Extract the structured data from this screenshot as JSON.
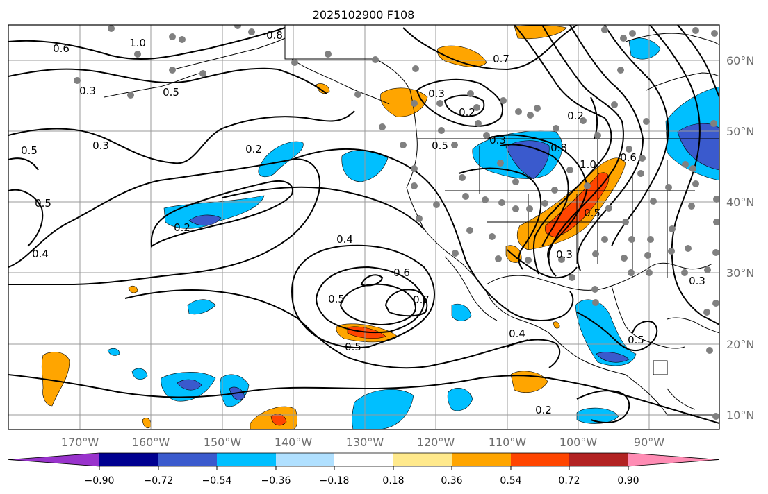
{
  "title": "2025102900 F108",
  "map": {
    "lon_ticks": [
      "170°W",
      "160°W",
      "150°W",
      "140°W",
      "130°W",
      "120°W",
      "110°W",
      "100°W",
      "90°W"
    ],
    "lat_ticks": [
      "60°N",
      "50°N",
      "40°N",
      "30°N",
      "20°N",
      "10°N"
    ],
    "contour_labels": [
      "1.0",
      "0.8",
      "0.6",
      "0.5",
      "0.3",
      "0.5",
      "0.3",
      "0.7",
      "0.3",
      "0.2",
      "0.5",
      "0.3",
      "0.2",
      "0.8",
      "0.2",
      "1.0",
      "0.6",
      "0.5",
      "0.2",
      "0.4",
      "0.5",
      "0.3",
      "0.5",
      "0.4",
      "0.6",
      "0.7",
      "0.5",
      "0.5",
      "0.4",
      "0.3",
      "0.2"
    ]
  },
  "colorbar": {
    "colors": [
      "#9933cc",
      "#000090",
      "#3a5acd",
      "#00bfff",
      "#b0e0ff",
      "#ffffff",
      "#ffe98c",
      "#ffa500",
      "#ff4500",
      "#b22222",
      "#ff8cb4"
    ],
    "tick_labels": [
      "−0.90",
      "−0.72",
      "−0.54",
      "−0.36",
      "−0.18",
      "0.18",
      "0.36",
      "0.54",
      "0.72",
      "0.90"
    ]
  }
}
